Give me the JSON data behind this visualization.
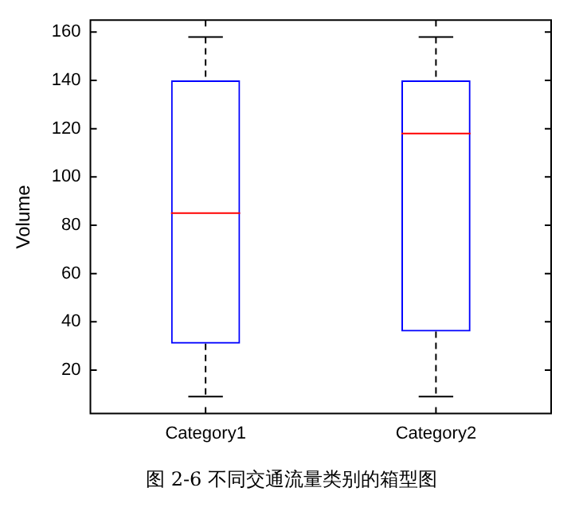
{
  "chart_data": {
    "type": "box",
    "ylabel": "Volume",
    "categories": [
      "Category1",
      "Category2"
    ],
    "series": [
      {
        "color": "#0000ff",
        "boxes": [
          {
            "low": 9,
            "q1": 31,
            "median": 85,
            "q3": 140,
            "high": 158
          },
          {
            "low": 9,
            "q1": 36,
            "median": 118,
            "q3": 140,
            "high": 158
          }
        ]
      }
    ],
    "ylim": [
      2,
      165
    ],
    "yticks": [
      20,
      40,
      60,
      80,
      100,
      120,
      140,
      160
    ],
    "annotations": [
      "图 2-6  不同交通流量类别的箱型图"
    ]
  }
}
